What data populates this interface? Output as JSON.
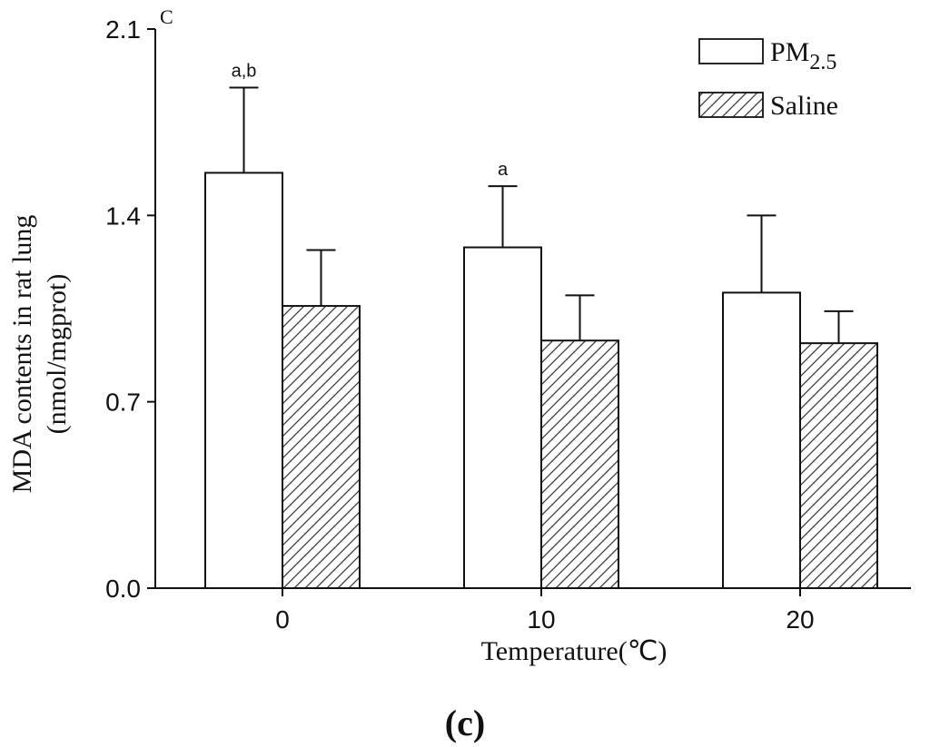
{
  "chart_data": {
    "type": "bar",
    "panel_label_corner": "C",
    "panel_caption": "(c)",
    "xlabel": "Temperature(℃)",
    "ylabel": [
      "MDA contents in rat lung",
      "(nmol/mgprot)"
    ],
    "categories": [
      "0",
      "10",
      "20"
    ],
    "ylim": [
      0,
      2.1
    ],
    "yticks": [
      "0.0",
      "0.7",
      "1.4",
      "2.1"
    ],
    "ytick_values": [
      0,
      0.7,
      1.4,
      2.1
    ],
    "series": [
      {
        "name": "PM",
        "name_subscript": "2.5",
        "fill": "open",
        "values": [
          1.56,
          1.28,
          1.11
        ],
        "errors": [
          0.32,
          0.23,
          0.29
        ],
        "annotations": [
          "a,b",
          "a",
          ""
        ]
      },
      {
        "name": "Saline",
        "fill": "hatched",
        "values": [
          1.06,
          0.93,
          0.92
        ],
        "errors": [
          0.21,
          0.17,
          0.12
        ],
        "annotations": [
          "",
          "",
          ""
        ]
      }
    ],
    "legend_position": "top-right"
  },
  "colors": {
    "stroke": "#111111",
    "background": "#ffffff"
  }
}
